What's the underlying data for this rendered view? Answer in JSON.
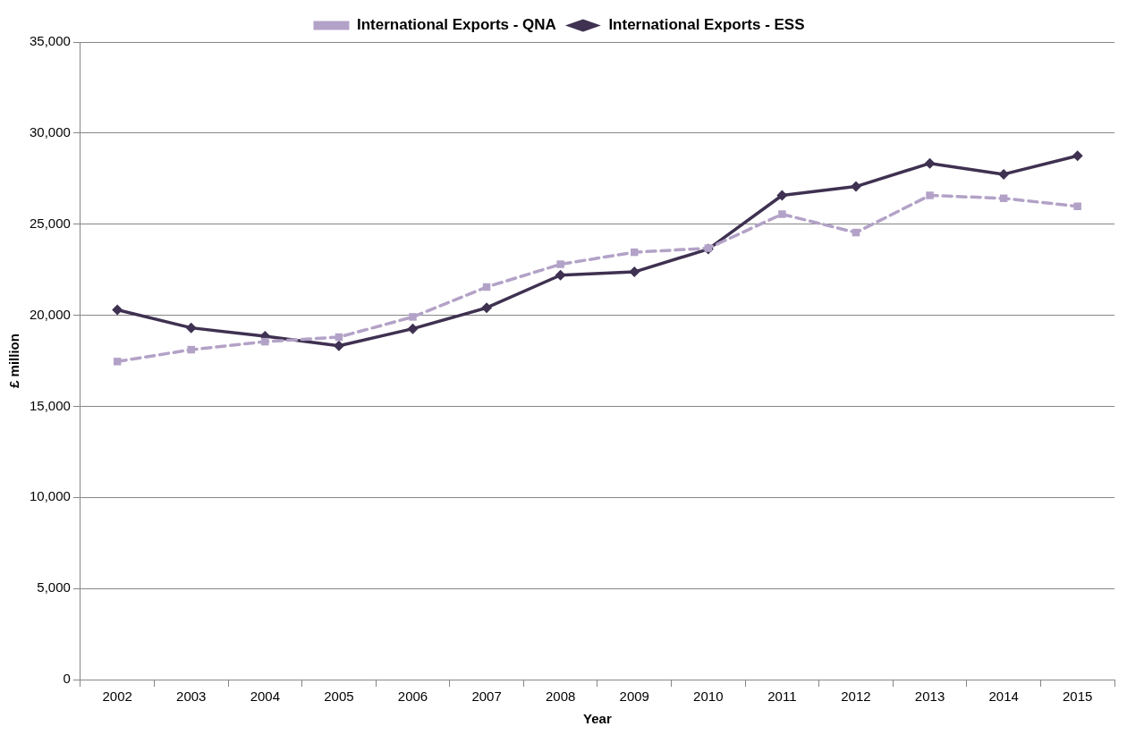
{
  "chart_data": {
    "type": "line",
    "xlabel": "Year",
    "ylabel": "£ million",
    "categories": [
      "2002",
      "2003",
      "2004",
      "2005",
      "2006",
      "2007",
      "2008",
      "2009",
      "2010",
      "2011",
      "2012",
      "2013",
      "2014",
      "2015"
    ],
    "series": [
      {
        "name": "International Exports - ESS",
        "color": "#3f3151",
        "marker": "diamond",
        "line_style": "solid",
        "values": [
          20300,
          19310,
          18850,
          18320,
          19260,
          20410,
          22200,
          22380,
          23630,
          26580,
          27070,
          28340,
          27740,
          28750
        ]
      },
      {
        "name": "International Exports - QNA",
        "color": "#b3a2c7",
        "marker": "square",
        "line_style": "dashed",
        "values": [
          17460,
          18110,
          18550,
          18800,
          19910,
          21550,
          22800,
          23460,
          23680,
          25550,
          24540,
          26580,
          26420,
          25980
        ]
      }
    ],
    "ylim": [
      0,
      35000
    ],
    "yticks": [
      0,
      {
        "value": 5000,
        "label": "5,000"
      },
      {
        "value": 10000,
        "label": "10,000"
      },
      {
        "value": 15000,
        "label": "15,000"
      },
      {
        "value": 20000,
        "label": "20,000"
      },
      {
        "value": 25000,
        "label": "25,000"
      },
      {
        "value": 30000,
        "label": "30,000"
      },
      {
        "value": 35000,
        "label": "35,000"
      }
    ],
    "grid": "y",
    "legend": "top"
  }
}
